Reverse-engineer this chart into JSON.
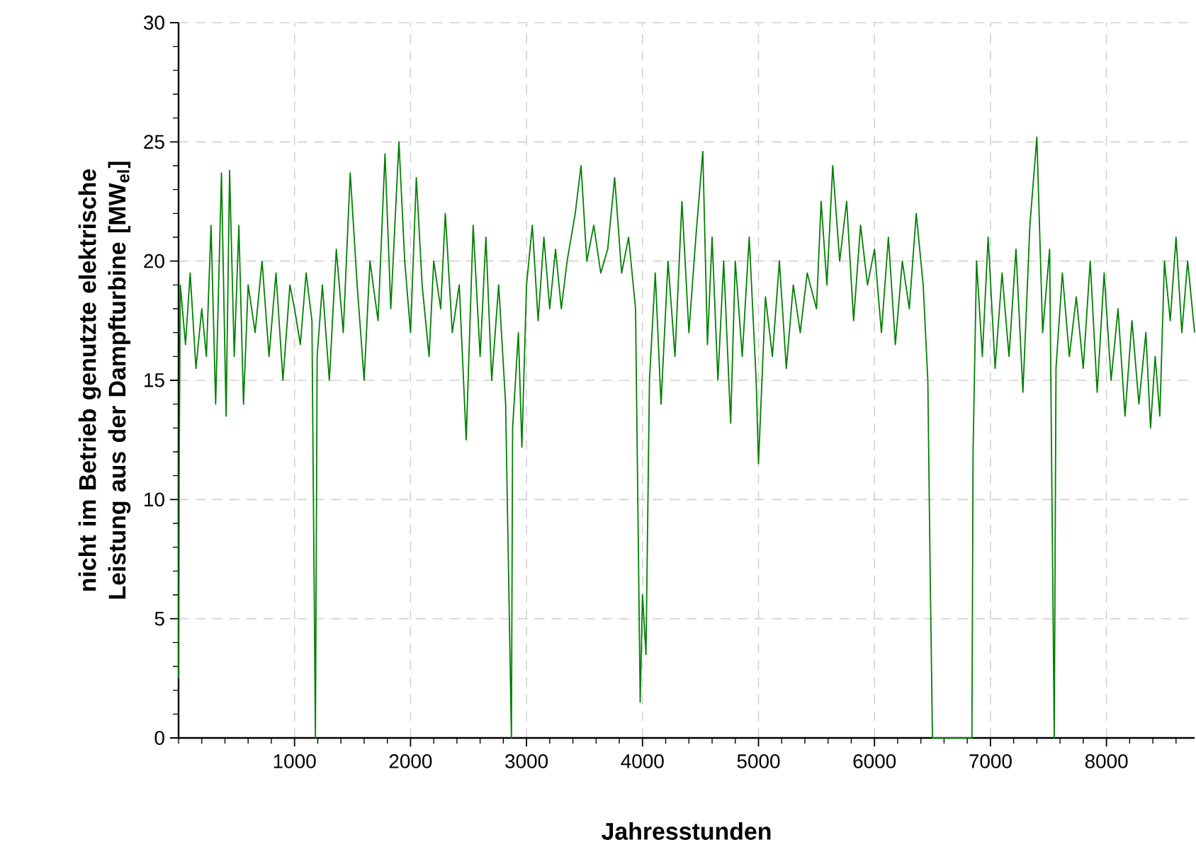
{
  "chart_data": {
    "type": "line",
    "xlabel": "Jahresstunden",
    "ylabel": "nicht im Betrieb genutzte elektrische Leistung aus der Dampfturbine [MW$_{el}$]",
    "xlim": [
      0,
      8760
    ],
    "ylim": [
      0,
      30
    ],
    "xticks": [
      1000,
      2000,
      3000,
      4000,
      5000,
      6000,
      7000,
      8000
    ],
    "yticks": [
      0,
      5,
      10,
      15,
      20,
      25,
      30
    ],
    "grid": true,
    "marker": "none",
    "line_style": "solid",
    "series": [
      {
        "color": "#008000",
        "x": [
          0,
          5,
          15,
          60,
          100,
          150,
          200,
          240,
          280,
          320,
          370,
          410,
          440,
          480,
          520,
          560,
          600,
          660,
          720,
          780,
          840,
          900,
          960,
          1000,
          1050,
          1100,
          1150,
          1180,
          1195,
          1240,
          1300,
          1360,
          1420,
          1480,
          1540,
          1600,
          1650,
          1720,
          1780,
          1830,
          1900,
          1950,
          2000,
          2050,
          2100,
          2160,
          2200,
          2260,
          2300,
          2360,
          2420,
          2480,
          2540,
          2600,
          2650,
          2700,
          2760,
          2820,
          2870,
          2880,
          2930,
          2960,
          3000,
          3050,
          3100,
          3150,
          3200,
          3250,
          3300,
          3350,
          3420,
          3470,
          3520,
          3580,
          3640,
          3700,
          3760,
          3820,
          3880,
          3940,
          3980,
          4000,
          4030,
          4060,
          4110,
          4160,
          4220,
          4280,
          4340,
          4400,
          4460,
          4520,
          4560,
          4600,
          4650,
          4700,
          4760,
          4800,
          4860,
          4920,
          4980,
          5000,
          5060,
          5120,
          5180,
          5240,
          5300,
          5360,
          5420,
          5500,
          5540,
          5590,
          5640,
          5700,
          5760,
          5820,
          5880,
          5940,
          6000,
          6060,
          6120,
          6180,
          6240,
          6300,
          6360,
          6420,
          6460,
          6480,
          6500,
          6840,
          6850,
          6880,
          6930,
          6980,
          7040,
          7100,
          7160,
          7220,
          7280,
          7340,
          7400,
          7450,
          7510,
          7550,
          7565,
          7620,
          7680,
          7740,
          7800,
          7860,
          7920,
          7980,
          8040,
          8100,
          8160,
          8220,
          8280,
          8340,
          8380,
          8420,
          8460,
          8500,
          8550,
          8600,
          8650,
          8700,
          8760
        ],
        "values": [
          2.5,
          11,
          19,
          16.5,
          19.5,
          15.5,
          18,
          16,
          21.5,
          14,
          23.7,
          13.5,
          23.8,
          16,
          21.5,
          14,
          19,
          17,
          20,
          16,
          19.5,
          15,
          19,
          18,
          16.5,
          19.5,
          17.5,
          0,
          16,
          19,
          15,
          20.5,
          17,
          23.7,
          19,
          15,
          20,
          17.5,
          24.5,
          18,
          25,
          20,
          17,
          23.5,
          19,
          16,
          20,
          18,
          22,
          17,
          19,
          12.5,
          21.5,
          16,
          21,
          15,
          19,
          14,
          0,
          13,
          17,
          12.2,
          19,
          21.5,
          17.5,
          21,
          18,
          20.5,
          18,
          20,
          22,
          24,
          20,
          21.5,
          19.5,
          20.5,
          23.5,
          19.5,
          21,
          18,
          1.5,
          6,
          3.5,
          15,
          19.5,
          14,
          20,
          16,
          22.5,
          17,
          21,
          24.6,
          16.5,
          21,
          15,
          20,
          13.2,
          20,
          16,
          21,
          15,
          11.5,
          18.5,
          16,
          20,
          15.5,
          19,
          17,
          19.5,
          18,
          22.5,
          19,
          24,
          20,
          22.5,
          17.5,
          21.5,
          19,
          20.5,
          17,
          21,
          16.5,
          20,
          18,
          22,
          19,
          15,
          7,
          0,
          0,
          12,
          20,
          16,
          21,
          15.5,
          19.5,
          16,
          20.5,
          14.5,
          21.5,
          25.2,
          17,
          20.5,
          0,
          15.5,
          19.5,
          16,
          18.5,
          15.5,
          20,
          14.5,
          19.5,
          15,
          18,
          13.5,
          17.5,
          14,
          17,
          13,
          16,
          13.5,
          20,
          17.5,
          21,
          17,
          20,
          17
        ]
      }
    ]
  }
}
